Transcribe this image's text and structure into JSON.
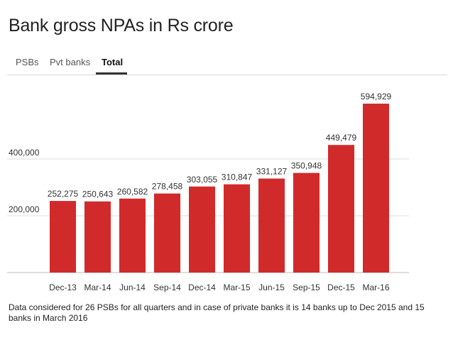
{
  "header": {
    "title": "Bank gross NPAs in Rs crore"
  },
  "tabs": [
    {
      "label": "PSBs",
      "active": false
    },
    {
      "label": "Pvt banks",
      "active": false
    },
    {
      "label": "Total",
      "active": true
    }
  ],
  "chart_data": {
    "type": "bar",
    "categories": [
      "Dec-13",
      "Mar-14",
      "Jun-14",
      "Sep-14",
      "Dec-14",
      "Mar-15",
      "Jun-15",
      "Sep-15",
      "Dec-15",
      "Mar-16"
    ],
    "values": [
      252275,
      250643,
      260582,
      278458,
      303055,
      310847,
      331127,
      350948,
      449479,
      594929
    ],
    "data_labels": [
      "252,275",
      "250,643",
      "260,582",
      "278,458",
      "303,055",
      "310,847",
      "331,127",
      "350,948",
      "449,479",
      "594,929"
    ],
    "yticks": [
      200000,
      400000
    ],
    "ytick_labels": [
      "200,000",
      "400,000"
    ],
    "ylim": [
      0,
      650000
    ],
    "grid": true,
    "bar_color": "#d12a2a"
  },
  "footnote": "Data considered for 26 PSBs for all quarters and in case of private banks it is 14 banks up to Dec 2015 and 15 banks in March 2016"
}
